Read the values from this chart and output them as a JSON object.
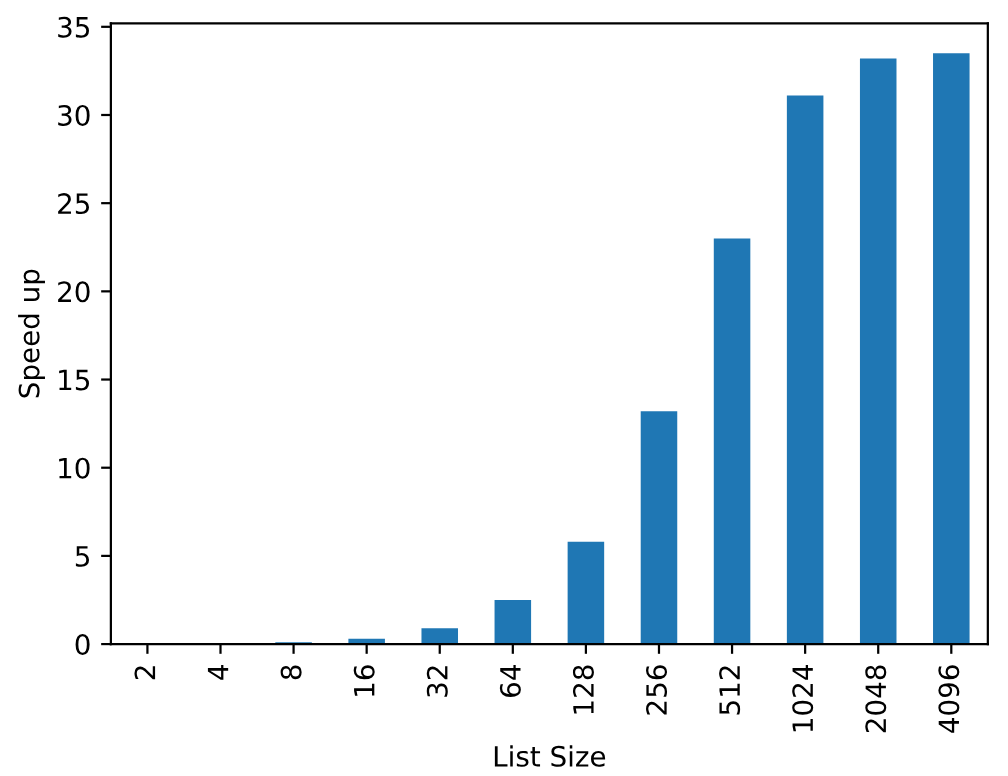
{
  "chart_data": {
    "type": "bar",
    "xlabel": "List Size",
    "ylabel": "Speed up",
    "categories": [
      "2",
      "4",
      "8",
      "16",
      "32",
      "64",
      "128",
      "256",
      "512",
      "1024",
      "2048",
      "4096"
    ],
    "values": [
      0.0,
      0.0,
      0.1,
      0.3,
      0.9,
      2.5,
      5.8,
      13.2,
      23.0,
      31.1,
      33.2,
      33.5
    ],
    "color": "#1f77b4",
    "ylim": [
      0,
      35.2
    ],
    "yticks": [
      0,
      5,
      10,
      15,
      20,
      25,
      30,
      35
    ],
    "grid": false,
    "legend": false
  }
}
